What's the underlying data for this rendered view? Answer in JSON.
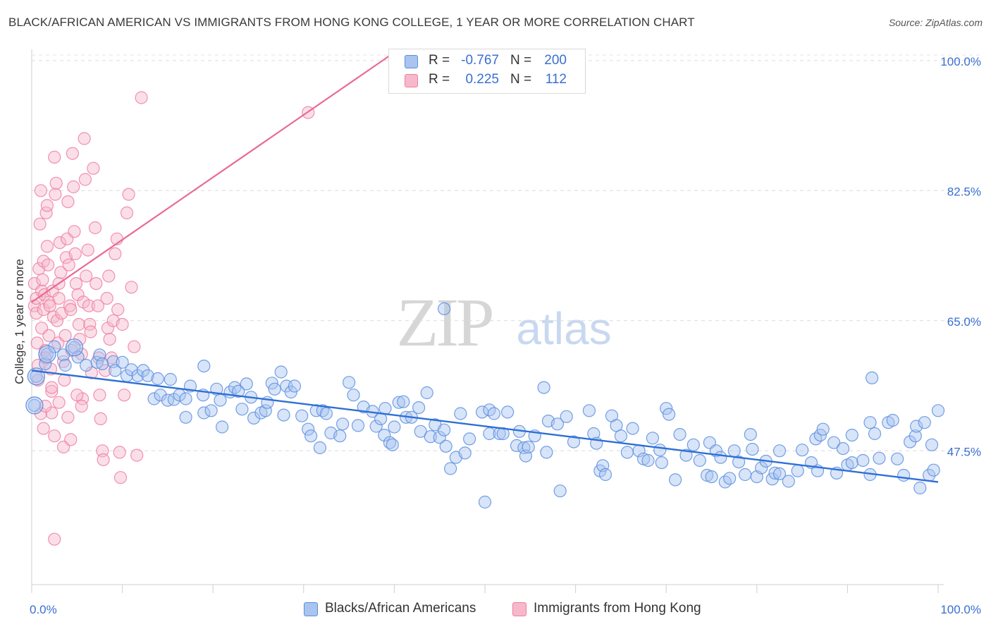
{
  "title": "BLACK/AFRICAN AMERICAN VS IMMIGRANTS FROM HONG KONG COLLEGE, 1 YEAR OR MORE CORRELATION CHART",
  "source": "Source: ZipAtlas.com",
  "watermark": {
    "zip": "ZIP",
    "atlas": "atlas"
  },
  "legend": {
    "blue": {
      "r_label": "R =",
      "r_value": "-0.767",
      "n_label": "N =",
      "n_value": "200",
      "color": "#a8c4ef"
    },
    "pink": {
      "r_label": "R =",
      "r_value": "0.225",
      "n_label": "N =",
      "n_value": "112",
      "color": "#f7b8cb"
    }
  },
  "bottom_legend": {
    "blue_label": "Blacks/African Americans",
    "pink_label": "Immigrants from Hong Kong"
  },
  "chart_data": {
    "type": "scatter",
    "xlabel": "",
    "ylabel": "College, 1 year or more",
    "xlim": [
      0,
      100
    ],
    "ylim": [
      29.5,
      101.5
    ],
    "x_tick_labels": [
      "0.0%",
      "100.0%"
    ],
    "y_tick_labels": [
      "47.5%",
      "65.0%",
      "82.5%",
      "100.0%"
    ],
    "y_ticks": [
      47.5,
      65.0,
      82.5,
      100.0
    ],
    "grid": "dashed horizontal",
    "colors": {
      "blue": "#5b8fe0",
      "blue_fill": "#a8c4ef",
      "blue_line": "#2e6fd6",
      "pink": "#ee7fa2",
      "pink_fill": "#f7b8cb",
      "pink_line": "#e86b92"
    },
    "series": [
      {
        "name": "Blacks/African Americans",
        "color": "blue",
        "trend": {
          "x0": 0,
          "y0": 58.3,
          "x1": 100,
          "y1": 43.3
        },
        "points": [
          [
            0.3,
            53.6
          ],
          [
            0.5,
            57.5
          ],
          [
            1.5,
            59.2
          ],
          [
            1.7,
            60.5
          ],
          [
            2.5,
            61.5
          ],
          [
            3.5,
            60.4
          ],
          [
            3.7,
            59.0
          ],
          [
            4.7,
            61.4
          ],
          [
            5.1,
            60.1
          ],
          [
            6.0,
            59.0
          ],
          [
            7.2,
            59.4
          ],
          [
            7.5,
            60.4
          ],
          [
            7.8,
            59.2
          ],
          [
            9.0,
            59.5
          ],
          [
            9.2,
            58.3
          ],
          [
            10.0,
            59.4
          ],
          [
            10.5,
            57.6
          ],
          [
            11.0,
            58.4
          ],
          [
            11.7,
            57.6
          ],
          [
            12.3,
            58.3
          ],
          [
            12.8,
            57.6
          ],
          [
            13.5,
            54.5
          ],
          [
            13.9,
            57.2
          ],
          [
            14.2,
            55.0
          ],
          [
            15.0,
            54.3
          ],
          [
            15.3,
            57.1
          ],
          [
            15.7,
            54.4
          ],
          [
            16.3,
            55.0
          ],
          [
            17.0,
            54.5
          ],
          [
            17.5,
            56.2
          ],
          [
            17.0,
            52.0
          ],
          [
            18.9,
            55.0
          ],
          [
            19.0,
            52.6
          ],
          [
            19.0,
            58.9
          ],
          [
            19.8,
            52.9
          ],
          [
            20.4,
            55.8
          ],
          [
            20.8,
            54.3
          ],
          [
            21.0,
            50.7
          ],
          [
            21.9,
            55.4
          ],
          [
            22.4,
            56.0
          ],
          [
            22.8,
            55.5
          ],
          [
            23.2,
            53.1
          ],
          [
            23.7,
            56.5
          ],
          [
            24.2,
            54.7
          ],
          [
            24.5,
            51.9
          ],
          [
            25.3,
            52.6
          ],
          [
            25.8,
            52.9
          ],
          [
            26.0,
            54.0
          ],
          [
            26.5,
            56.6
          ],
          [
            26.8,
            55.8
          ],
          [
            27.5,
            58.1
          ],
          [
            27.8,
            52.3
          ],
          [
            28.1,
            56.2
          ],
          [
            28.6,
            55.4
          ],
          [
            29.0,
            56.2
          ],
          [
            29.8,
            52.2
          ],
          [
            30.5,
            50.4
          ],
          [
            30.8,
            49.5
          ],
          [
            31.4,
            52.9
          ],
          [
            31.8,
            47.9
          ],
          [
            32.1,
            52.9
          ],
          [
            32.5,
            52.5
          ],
          [
            33.0,
            49.9
          ],
          [
            34.0,
            49.5
          ],
          [
            34.3,
            51.1
          ],
          [
            35.0,
            56.7
          ],
          [
            35.5,
            55.0
          ],
          [
            36.0,
            50.9
          ],
          [
            36.6,
            53.4
          ],
          [
            37.6,
            52.8
          ],
          [
            38.0,
            50.8
          ],
          [
            38.5,
            51.8
          ],
          [
            38.9,
            49.6
          ],
          [
            39.0,
            53.2
          ],
          [
            39.5,
            48.6
          ],
          [
            39.8,
            48.3
          ],
          [
            40.0,
            50.7
          ],
          [
            40.5,
            54.0
          ],
          [
            41.0,
            54.1
          ],
          [
            41.3,
            52.0
          ],
          [
            41.9,
            52.0
          ],
          [
            42.7,
            53.3
          ],
          [
            42.9,
            50.1
          ],
          [
            43.6,
            55.3
          ],
          [
            44.0,
            49.4
          ],
          [
            44.5,
            51.0
          ],
          [
            45.0,
            49.3
          ],
          [
            45.5,
            66.6
          ],
          [
            45.5,
            50.3
          ],
          [
            45.7,
            48.1
          ],
          [
            46.2,
            45.1
          ],
          [
            46.8,
            46.6
          ],
          [
            47.3,
            52.5
          ],
          [
            47.8,
            47.2
          ],
          [
            48.3,
            49.1
          ],
          [
            49.7,
            52.7
          ],
          [
            50.0,
            40.6
          ],
          [
            50.5,
            49.8
          ],
          [
            50.5,
            53.0
          ],
          [
            51.0,
            52.5
          ],
          [
            51.6,
            49.8
          ],
          [
            52.0,
            49.8
          ],
          [
            52.5,
            52.7
          ],
          [
            53.5,
            48.2
          ],
          [
            53.8,
            50.1
          ],
          [
            54.3,
            47.9
          ],
          [
            54.5,
            46.8
          ],
          [
            54.8,
            48.0
          ],
          [
            55.5,
            49.5
          ],
          [
            56.5,
            56.0
          ],
          [
            56.8,
            47.3
          ],
          [
            57.0,
            51.5
          ],
          [
            58.0,
            51.1
          ],
          [
            58.3,
            42.1
          ],
          [
            59.0,
            52.1
          ],
          [
            59.8,
            48.7
          ],
          [
            61.5,
            52.9
          ],
          [
            62.0,
            49.8
          ],
          [
            62.3,
            48.5
          ],
          [
            62.7,
            44.8
          ],
          [
            63.0,
            45.5
          ],
          [
            63.3,
            44.3
          ],
          [
            64.0,
            52.2
          ],
          [
            64.5,
            50.9
          ],
          [
            65.0,
            49.5
          ],
          [
            65.7,
            47.3
          ],
          [
            66.3,
            50.5
          ],
          [
            67.0,
            47.5
          ],
          [
            67.5,
            46.4
          ],
          [
            68.0,
            46.2
          ],
          [
            68.5,
            49.2
          ],
          [
            69.3,
            47.6
          ],
          [
            69.5,
            45.9
          ],
          [
            70.0,
            53.2
          ],
          [
            70.3,
            52.4
          ],
          [
            71.0,
            43.6
          ],
          [
            71.5,
            49.7
          ],
          [
            72.2,
            46.9
          ],
          [
            73.0,
            48.3
          ],
          [
            73.7,
            46.2
          ],
          [
            74.5,
            44.2
          ],
          [
            74.8,
            48.6
          ],
          [
            75.0,
            44.0
          ],
          [
            75.5,
            47.5
          ],
          [
            76.0,
            46.6
          ],
          [
            76.5,
            43.3
          ],
          [
            77.0,
            43.8
          ],
          [
            77.5,
            47.5
          ],
          [
            78.0,
            46.0
          ],
          [
            78.7,
            44.3
          ],
          [
            79.3,
            49.7
          ],
          [
            79.5,
            47.7
          ],
          [
            80.0,
            44.0
          ],
          [
            80.5,
            45.2
          ],
          [
            81.0,
            46.1
          ],
          [
            81.7,
            43.7
          ],
          [
            82.0,
            44.5
          ],
          [
            82.5,
            44.4
          ],
          [
            82.5,
            47.5
          ],
          [
            83.5,
            43.4
          ],
          [
            84.5,
            44.8
          ],
          [
            85.0,
            47.6
          ],
          [
            86.0,
            45.9
          ],
          [
            86.5,
            49.1
          ],
          [
            86.7,
            44.8
          ],
          [
            87.0,
            49.6
          ],
          [
            87.3,
            50.4
          ],
          [
            88.5,
            48.6
          ],
          [
            88.8,
            44.5
          ],
          [
            89.5,
            47.8
          ],
          [
            90.0,
            45.6
          ],
          [
            90.5,
            45.9
          ],
          [
            90.5,
            49.6
          ],
          [
            91.7,
            46.2
          ],
          [
            92.5,
            44.3
          ],
          [
            92.5,
            51.3
          ],
          [
            92.7,
            57.3
          ],
          [
            93.0,
            49.8
          ],
          [
            93.5,
            46.5
          ],
          [
            94.5,
            51.3
          ],
          [
            95.0,
            51.6
          ],
          [
            95.5,
            46.4
          ],
          [
            96.2,
            44.2
          ],
          [
            96.9,
            48.7
          ],
          [
            97.5,
            49.5
          ],
          [
            97.6,
            50.8
          ],
          [
            98.0,
            42.5
          ],
          [
            98.5,
            51.3
          ],
          [
            99.0,
            44.2
          ],
          [
            99.3,
            48.3
          ],
          [
            99.5,
            44.9
          ],
          [
            100.0,
            52.9
          ]
        ]
      },
      {
        "name": "Immigrants from Hong Kong",
        "color": "pink",
        "trend": {
          "x0": 0,
          "y0": 67.5,
          "x1": 40.5,
          "y1": 101.5
        },
        "points": [
          [
            0.3,
            70.0
          ],
          [
            0.3,
            67.0
          ],
          [
            0.5,
            68.0
          ],
          [
            0.5,
            66.0
          ],
          [
            0.6,
            62.0
          ],
          [
            0.7,
            59.0
          ],
          [
            0.7,
            57.0
          ],
          [
            0.8,
            72.0
          ],
          [
            0.9,
            78.0
          ],
          [
            1.0,
            82.5
          ],
          [
            1.1,
            69.0
          ],
          [
            1.1,
            64.0
          ],
          [
            1.2,
            70.5
          ],
          [
            1.3,
            66.5
          ],
          [
            1.3,
            73.0
          ],
          [
            1.4,
            68.5
          ],
          [
            1.5,
            61.0
          ],
          [
            1.5,
            60.0
          ],
          [
            1.6,
            79.5
          ],
          [
            1.7,
            80.5
          ],
          [
            1.7,
            75.0
          ],
          [
            1.8,
            72.5
          ],
          [
            1.9,
            67.5
          ],
          [
            1.9,
            63.0
          ],
          [
            2.0,
            67.0
          ],
          [
            2.1,
            58.5
          ],
          [
            2.2,
            55.5
          ],
          [
            2.2,
            52.6
          ],
          [
            2.3,
            69.0
          ],
          [
            2.4,
            65.5
          ],
          [
            2.5,
            87.0
          ],
          [
            2.6,
            82.0
          ],
          [
            2.7,
            83.5
          ],
          [
            2.8,
            65.0
          ],
          [
            2.9,
            62.0
          ],
          [
            3.0,
            70.0
          ],
          [
            3.0,
            68.0
          ],
          [
            3.1,
            75.5
          ],
          [
            3.2,
            71.5
          ],
          [
            3.3,
            66.0
          ],
          [
            3.5,
            59.5
          ],
          [
            3.6,
            57.0
          ],
          [
            3.7,
            63.0
          ],
          [
            3.8,
            73.5
          ],
          [
            3.9,
            76.0
          ],
          [
            4.0,
            81.0
          ],
          [
            4.1,
            72.5
          ],
          [
            4.2,
            67.0
          ],
          [
            4.3,
            66.5
          ],
          [
            4.4,
            61.0
          ],
          [
            4.5,
            87.5
          ],
          [
            4.6,
            83.0
          ],
          [
            4.7,
            77.0
          ],
          [
            4.8,
            74.0
          ],
          [
            4.9,
            70.0
          ],
          [
            5.1,
            68.5
          ],
          [
            5.2,
            64.5
          ],
          [
            5.3,
            62.5
          ],
          [
            5.5,
            60.5
          ],
          [
            5.6,
            54.5
          ],
          [
            5.7,
            67.5
          ],
          [
            5.8,
            89.5
          ],
          [
            5.9,
            84.0
          ],
          [
            6.0,
            71.0
          ],
          [
            6.2,
            74.5
          ],
          [
            6.3,
            67.0
          ],
          [
            6.4,
            64.5
          ],
          [
            6.5,
            63.5
          ],
          [
            6.6,
            58.0
          ],
          [
            6.8,
            85.5
          ],
          [
            7.0,
            77.5
          ],
          [
            7.1,
            70.0
          ],
          [
            7.3,
            67.0
          ],
          [
            7.4,
            60.0
          ],
          [
            7.5,
            55.0
          ],
          [
            7.6,
            51.8
          ],
          [
            7.8,
            47.5
          ],
          [
            7.9,
            46.3
          ],
          [
            8.1,
            58.3
          ],
          [
            8.3,
            68.0
          ],
          [
            8.4,
            64.0
          ],
          [
            8.5,
            71.0
          ],
          [
            8.6,
            62.5
          ],
          [
            8.8,
            60.0
          ],
          [
            9.0,
            65.0
          ],
          [
            9.2,
            74.0
          ],
          [
            9.4,
            76.0
          ],
          [
            9.5,
            66.5
          ],
          [
            9.7,
            47.3
          ],
          [
            9.8,
            43.9
          ],
          [
            10.0,
            64.5
          ],
          [
            10.2,
            55.0
          ],
          [
            10.5,
            79.5
          ],
          [
            10.7,
            82.0
          ],
          [
            11.0,
            69.5
          ],
          [
            11.3,
            61.5
          ],
          [
            11.6,
            46.9
          ],
          [
            12.1,
            95.0
          ],
          [
            1.0,
            52.5
          ],
          [
            1.3,
            50.5
          ],
          [
            1.5,
            53.5
          ],
          [
            2.2,
            56.0
          ],
          [
            2.5,
            49.5
          ],
          [
            3.0,
            54.0
          ],
          [
            3.5,
            48.0
          ],
          [
            4.0,
            52.0
          ],
          [
            4.3,
            49.0
          ],
          [
            5.0,
            55.0
          ],
          [
            5.5,
            53.5
          ],
          [
            2.5,
            35.6
          ],
          [
            30.5,
            93.0
          ]
        ]
      }
    ]
  }
}
